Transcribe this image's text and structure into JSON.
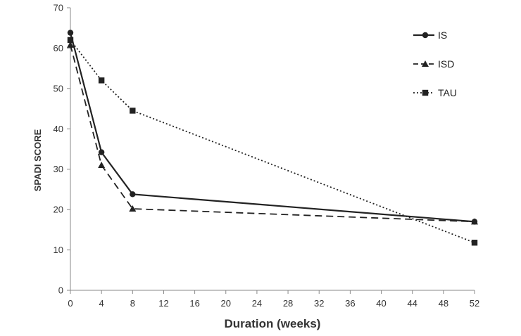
{
  "chart_data": {
    "type": "line",
    "title": "",
    "xlabel": "Duration (weeks)",
    "ylabel": "SPADI SCORE",
    "xlim": [
      0,
      52
    ],
    "ylim": [
      0,
      70
    ],
    "xticks": [
      0,
      4,
      8,
      12,
      16,
      20,
      24,
      28,
      32,
      36,
      40,
      44,
      48,
      52
    ],
    "yticks": [
      0,
      10,
      20,
      30,
      40,
      50,
      60,
      70
    ],
    "grid": false,
    "legend_position": "top-right",
    "x": [
      0,
      4,
      8,
      52
    ],
    "series": [
      {
        "name": "IS",
        "values": [
          63.8,
          34.2,
          23.8,
          17.0
        ],
        "line_style": "solid",
        "marker": "circle",
        "color": "#222222"
      },
      {
        "name": "ISD",
        "values": [
          60.8,
          31.0,
          20.2,
          17.0
        ],
        "line_style": "dashed",
        "marker": "triangle",
        "color": "#222222"
      },
      {
        "name": "TAU",
        "values": [
          62.0,
          52.0,
          44.5,
          11.8
        ],
        "line_style": "dotted",
        "marker": "square",
        "color": "#222222"
      }
    ]
  }
}
